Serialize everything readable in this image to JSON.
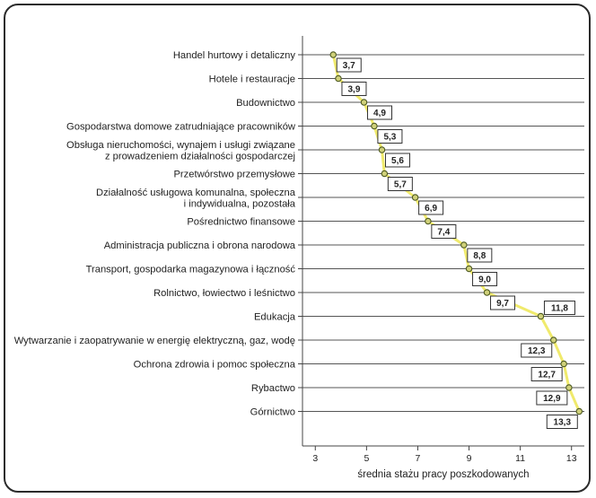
{
  "chart_data": {
    "type": "line",
    "orientation": "horizontal",
    "categories": [
      "Handel hurtowy i detaliczny",
      "Hotele i restauracje",
      "Budownictwo",
      "Gospodarstwa domowe zatrudniające pracowników",
      "Obsługa nieruchomości, wynajem i usługi związane\nz prowadzeniem działalności gospodarczej",
      "Przetwórstwo przemysłowe",
      "Działalność usługowa komunalna, społeczna\ni indywidualna, pozostała",
      "Pośrednictwo finansowe",
      "Administracja publiczna i obrona narodowa",
      "Transport, gospodarka magazynowa i łączność",
      "Rolnictwo, łowiectwo i leśnictwo",
      "Edukacja",
      "Wytwarzanie i zaopatrywanie w energię elektryczną, gaz, wodę",
      "Ochrona zdrowia i pomoc społeczna",
      "Rybactwo",
      "Górnictwo"
    ],
    "values": [
      3.7,
      3.9,
      4.9,
      5.3,
      5.6,
      5.7,
      6.9,
      7.4,
      8.8,
      9.0,
      9.7,
      11.8,
      12.3,
      12.7,
      12.9,
      13.3
    ],
    "data_labels": [
      "3,7",
      "3,9",
      "4,9",
      "5,3",
      "5,6",
      "5,7",
      "6,9",
      "7,4",
      "8,8",
      "9,0",
      "9,7",
      "11,8",
      "12,3",
      "12,7",
      "12,9",
      "13,3"
    ],
    "xlabel": "średnia stażu pracy poszkodowanych",
    "ylabel": "",
    "xlim": [
      2.5,
      13.5
    ],
    "x_ticks": [
      3,
      5,
      7,
      9,
      11,
      13
    ],
    "x_tick_labels": [
      "3",
      "5",
      "7",
      "9",
      "11",
      "13"
    ],
    "grid": true,
    "colors": {
      "line": "#f0ea6c",
      "marker_fill": "#cfd07a",
      "marker_stroke": "#4e5a22",
      "gridline": "#555555",
      "label_box_stroke": "#333333"
    }
  }
}
